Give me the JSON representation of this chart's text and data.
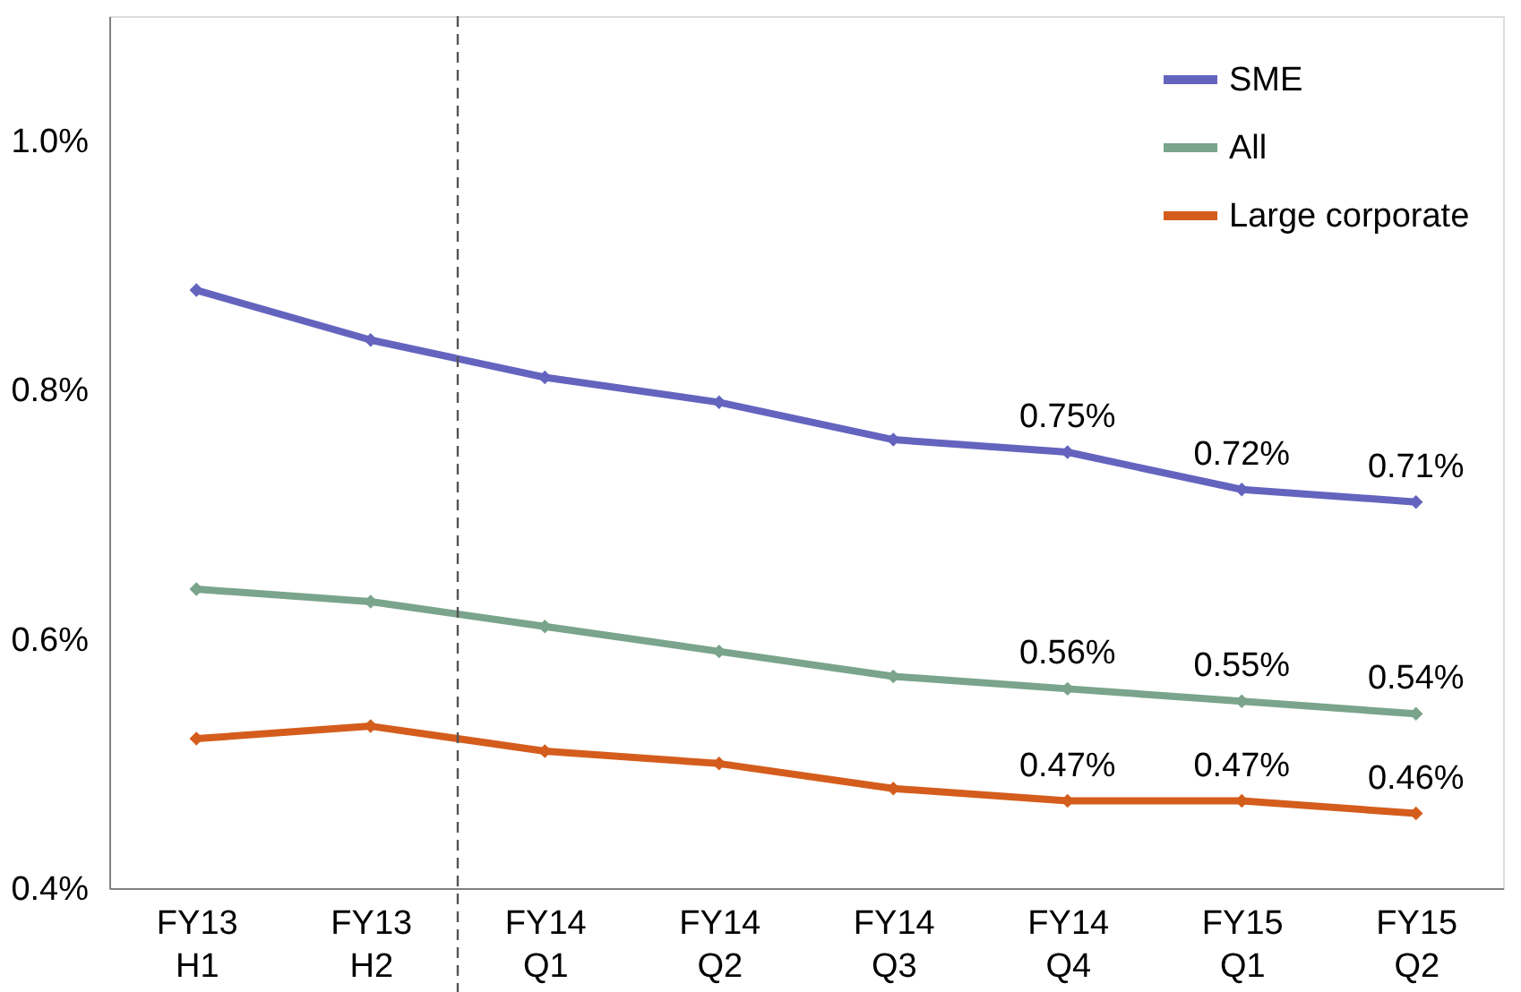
{
  "chart_data": {
    "type": "line",
    "categories": [
      "FY13\nH1",
      "FY13\nH2",
      "FY14\nQ1",
      "FY14\nQ2",
      "FY14\nQ3",
      "FY14\nQ4",
      "FY15\nQ1",
      "FY15\nQ2"
    ],
    "series": [
      {
        "name": "SME",
        "color": "#6464bf",
        "values": [
          0.88,
          0.84,
          0.81,
          0.79,
          0.76,
          0.75,
          0.72,
          0.71
        ],
        "value_labels": [
          null,
          null,
          null,
          null,
          null,
          "0.75%",
          "0.72%",
          "0.71%"
        ]
      },
      {
        "name": "All",
        "color": "#7aa48c",
        "values": [
          0.64,
          0.63,
          0.61,
          0.59,
          0.57,
          0.56,
          0.55,
          0.54
        ],
        "value_labels": [
          null,
          null,
          null,
          null,
          null,
          "0.56%",
          "0.55%",
          "0.54%"
        ]
      },
      {
        "name": "Large corporate",
        "color": "#d45d1d",
        "values": [
          0.52,
          0.53,
          0.51,
          0.5,
          0.48,
          0.47,
          0.47,
          0.46
        ],
        "value_labels": [
          null,
          null,
          null,
          null,
          null,
          "0.47%",
          "0.47%",
          "0.46%"
        ]
      }
    ],
    "ylim": [
      0.4,
      1.1
    ],
    "yticks": [
      {
        "value": 0.4,
        "label": "0.4%"
      },
      {
        "value": 0.6,
        "label": "0.6%"
      },
      {
        "value": 0.8,
        "label": "0.8%"
      },
      {
        "value": 1.0,
        "label": "1.0%"
      }
    ],
    "grid": false,
    "legend": "top right",
    "marker": "diamond",
    "line_style": "solid"
  }
}
